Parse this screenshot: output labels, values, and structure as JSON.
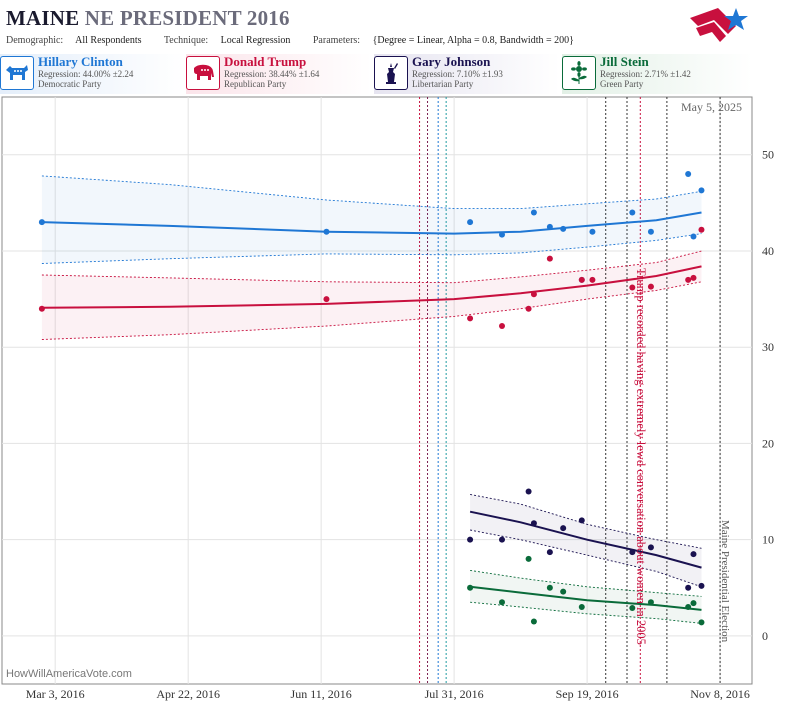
{
  "header": {
    "state": "MAINE",
    "rest": "NE PRESIDENT 2016",
    "demographic_label": "Demographic:",
    "demographic": "All Respondents",
    "technique_label": "Technique:",
    "technique": "Local Regression",
    "parameters_label": "Parameters:",
    "parameters": "{Degree = Linear, Alpha = 0.8, Bandwidth = 200}"
  },
  "legend": [
    {
      "name": "Hillary Clinton",
      "regression": "Regression: 44.00% ±2.24",
      "party": "Democratic Party",
      "color": "#1f77d4",
      "icon": "donkey-icon"
    },
    {
      "name": "Donald Trump",
      "regression": "Regression: 38.44% ±1.64",
      "party": "Republican Party",
      "color": "#c8103e",
      "icon": "elephant-icon"
    },
    {
      "name": "Gary Johnson",
      "regression": "Regression: 7.10% ±1.93",
      "party": "Libertarian Party",
      "color": "#1a1250",
      "icon": "liberty-icon"
    },
    {
      "name": "Jill Stein",
      "regression": "Regression: 2.71% ±1.42",
      "party": "Green Party",
      "color": "#0a6b3a",
      "icon": "sunflower-icon"
    }
  ],
  "credit": "HowWillAmericaVote.com",
  "chart_data": {
    "type": "scatter",
    "date_label": "May 5, 2025",
    "x_ticks": [
      "Mar 3, 2016",
      "Apr 22, 2016",
      "Jun 11, 2016",
      "Jul 31, 2016",
      "Sep 19, 2016",
      "Nov 8, 2016"
    ],
    "x_range": [
      "2016-02-12",
      "2016-11-20"
    ],
    "y_ticks": [
      0,
      10,
      20,
      30,
      40,
      50
    ],
    "ylim": [
      -5,
      56
    ],
    "annotations": [
      {
        "text": "Trump recorded having extremely lewd conversation about women in 2005",
        "date": "2016-10-07",
        "color": "#c8103e"
      },
      {
        "text": "Maine Presidential Election",
        "date": "2016-11-08",
        "color": "#555555"
      }
    ],
    "event_lines": [
      {
        "date": "2016-07-18",
        "color": "#c8103e"
      },
      {
        "date": "2016-07-21",
        "color": "#7a2050"
      },
      {
        "date": "2016-07-25",
        "color": "#1f77d4"
      },
      {
        "date": "2016-07-28",
        "color": "#1f9ba0"
      },
      {
        "date": "2016-09-26",
        "color": "#333333"
      },
      {
        "date": "2016-10-04",
        "color": "#333333"
      },
      {
        "date": "2016-10-09",
        "color": "#c8103e"
      },
      {
        "date": "2016-10-19",
        "color": "#333333"
      },
      {
        "date": "2016-11-08",
        "color": "#333333"
      }
    ],
    "series": [
      {
        "name": "Hillary Clinton",
        "color": "#1f77d4",
        "points": [
          [
            "2016-02-27",
            43
          ],
          [
            "2016-06-13",
            42
          ],
          [
            "2016-08-06",
            43
          ],
          [
            "2016-08-18",
            41.7
          ],
          [
            "2016-08-30",
            44
          ],
          [
            "2016-09-05",
            42.5
          ],
          [
            "2016-09-10",
            42.3
          ],
          [
            "2016-09-17",
            37
          ],
          [
            "2016-09-21",
            42
          ],
          [
            "2016-10-06",
            44
          ],
          [
            "2016-10-13",
            42
          ],
          [
            "2016-10-27",
            48
          ],
          [
            "2016-10-29",
            41.5
          ],
          [
            "2016-11-01",
            46.3
          ]
        ],
        "fit": [
          [
            "2016-02-27",
            43.0
          ],
          [
            "2016-04-15",
            42.6
          ],
          [
            "2016-06-13",
            42.0
          ],
          [
            "2016-07-31",
            41.8
          ],
          [
            "2016-08-25",
            42.0
          ],
          [
            "2016-09-19",
            42.6
          ],
          [
            "2016-10-15",
            43.2
          ],
          [
            "2016-11-01",
            44.0
          ]
        ],
        "upper": [
          [
            "2016-02-27",
            47.8
          ],
          [
            "2016-04-15",
            46.9
          ],
          [
            "2016-06-13",
            45.3
          ],
          [
            "2016-07-31",
            44.4
          ],
          [
            "2016-08-25",
            44.4
          ],
          [
            "2016-09-19",
            44.9
          ],
          [
            "2016-10-15",
            45.4
          ],
          [
            "2016-11-01",
            46.2
          ]
        ],
        "lower": [
          [
            "2016-02-27",
            38.7
          ],
          [
            "2016-04-15",
            39.2
          ],
          [
            "2016-06-13",
            39.7
          ],
          [
            "2016-07-31",
            39.6
          ],
          [
            "2016-08-25",
            39.8
          ],
          [
            "2016-09-19",
            40.4
          ],
          [
            "2016-10-15",
            41.1
          ],
          [
            "2016-11-01",
            41.8
          ]
        ]
      },
      {
        "name": "Donald Trump",
        "color": "#c8103e",
        "points": [
          [
            "2016-02-27",
            34
          ],
          [
            "2016-06-13",
            35
          ],
          [
            "2016-08-06",
            33
          ],
          [
            "2016-08-18",
            32.2
          ],
          [
            "2016-08-28",
            34
          ],
          [
            "2016-08-30",
            35.5
          ],
          [
            "2016-09-05",
            39.2
          ],
          [
            "2016-09-17",
            37
          ],
          [
            "2016-09-21",
            37
          ],
          [
            "2016-10-06",
            36.2
          ],
          [
            "2016-10-13",
            36.3
          ],
          [
            "2016-10-27",
            37
          ],
          [
            "2016-10-29",
            37.2
          ],
          [
            "2016-11-01",
            42.2
          ]
        ],
        "fit": [
          [
            "2016-02-27",
            34.1
          ],
          [
            "2016-04-15",
            34.2
          ],
          [
            "2016-06-13",
            34.5
          ],
          [
            "2016-07-31",
            35.0
          ],
          [
            "2016-08-25",
            35.6
          ],
          [
            "2016-09-19",
            36.4
          ],
          [
            "2016-10-15",
            37.4
          ],
          [
            "2016-11-01",
            38.4
          ]
        ],
        "upper": [
          [
            "2016-02-27",
            37.5
          ],
          [
            "2016-04-15",
            37.2
          ],
          [
            "2016-06-13",
            36.8
          ],
          [
            "2016-07-31",
            36.7
          ],
          [
            "2016-08-25",
            37.3
          ],
          [
            "2016-09-19",
            38.0
          ],
          [
            "2016-10-15",
            38.8
          ],
          [
            "2016-11-01",
            40.0
          ]
        ],
        "lower": [
          [
            "2016-02-27",
            30.8
          ],
          [
            "2016-04-15",
            31.3
          ],
          [
            "2016-06-13",
            32.2
          ],
          [
            "2016-07-31",
            33.2
          ],
          [
            "2016-08-25",
            34.0
          ],
          [
            "2016-09-19",
            35.0
          ],
          [
            "2016-10-15",
            35.9
          ],
          [
            "2016-11-01",
            36.8
          ]
        ]
      },
      {
        "name": "Gary Johnson",
        "color": "#1a1250",
        "points": [
          [
            "2016-08-06",
            10
          ],
          [
            "2016-08-18",
            10
          ],
          [
            "2016-08-28",
            15
          ],
          [
            "2016-08-30",
            11.7
          ],
          [
            "2016-09-05",
            8.7
          ],
          [
            "2016-09-10",
            11.2
          ],
          [
            "2016-09-17",
            12
          ],
          [
            "2016-10-06",
            8.7
          ],
          [
            "2016-10-13",
            9.2
          ],
          [
            "2016-10-27",
            5
          ],
          [
            "2016-10-29",
            8.5
          ],
          [
            "2016-11-01",
            5.2
          ]
        ],
        "fit": [
          [
            "2016-08-06",
            12.9
          ],
          [
            "2016-08-25",
            11.8
          ],
          [
            "2016-09-19",
            10.0
          ],
          [
            "2016-10-15",
            8.4
          ],
          [
            "2016-11-01",
            7.1
          ]
        ],
        "upper": [
          [
            "2016-08-06",
            14.7
          ],
          [
            "2016-08-25",
            13.7
          ],
          [
            "2016-09-19",
            11.6
          ],
          [
            "2016-10-15",
            10.0
          ],
          [
            "2016-11-01",
            9.1
          ]
        ],
        "lower": [
          [
            "2016-08-06",
            11.0
          ],
          [
            "2016-08-25",
            10.0
          ],
          [
            "2016-09-19",
            8.4
          ],
          [
            "2016-10-15",
            6.7
          ],
          [
            "2016-11-01",
            5.1
          ]
        ]
      },
      {
        "name": "Jill Stein",
        "color": "#0a6b3a",
        "points": [
          [
            "2016-08-06",
            5
          ],
          [
            "2016-08-18",
            3.5
          ],
          [
            "2016-08-28",
            8
          ],
          [
            "2016-08-30",
            1.5
          ],
          [
            "2016-09-05",
            5
          ],
          [
            "2016-09-10",
            4.6
          ],
          [
            "2016-09-17",
            3
          ],
          [
            "2016-10-06",
            2.9
          ],
          [
            "2016-10-13",
            3.5
          ],
          [
            "2016-10-27",
            3
          ],
          [
            "2016-10-29",
            3.4
          ],
          [
            "2016-11-01",
            1.4
          ]
        ],
        "fit": [
          [
            "2016-08-06",
            5.1
          ],
          [
            "2016-08-25",
            4.5
          ],
          [
            "2016-09-19",
            3.7
          ],
          [
            "2016-10-15",
            3.2
          ],
          [
            "2016-11-01",
            2.7
          ]
        ],
        "upper": [
          [
            "2016-08-06",
            6.8
          ],
          [
            "2016-08-25",
            6.0
          ],
          [
            "2016-09-19",
            5.1
          ],
          [
            "2016-10-15",
            4.5
          ],
          [
            "2016-11-01",
            4.1
          ]
        ],
        "lower": [
          [
            "2016-08-06",
            3.5
          ],
          [
            "2016-08-25",
            3.0
          ],
          [
            "2016-09-19",
            2.3
          ],
          [
            "2016-10-15",
            1.8
          ],
          [
            "2016-11-01",
            1.3
          ]
        ]
      }
    ]
  }
}
